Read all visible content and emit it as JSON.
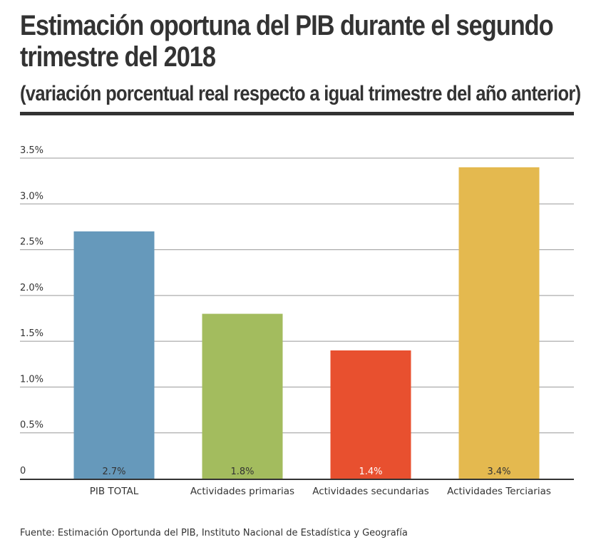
{
  "header": {
    "title": "Estimación oportuna del PIB durante el segundo trimestre del 2018",
    "subtitle": "(variación porcentual real respecto a igual trimestre del año anterior)"
  },
  "footer": {
    "source": "Fuente: Estimación Oportunda del PIB, Instituto Nacional de Estadística y Geografía"
  },
  "chart_data": {
    "type": "bar",
    "title": "Estimación oportuna del PIB durante el segundo trimestre del 2018",
    "subtitle": "(variación porcentual real respecto a igual trimestre del año anterior)",
    "categories": [
      "PIB TOTAL",
      "Actividades primarias",
      "Actividades secundarias",
      "Actividades Terciarias"
    ],
    "values": [
      2.7,
      1.8,
      1.4,
      3.4
    ],
    "value_labels": [
      "2.7%",
      "1.8%",
      "1.4%",
      "3.4%"
    ],
    "colors": [
      "#6699bb",
      "#a3bc5e",
      "#e8502f",
      "#e4b94f"
    ],
    "value_label_colors": [
      "#333333",
      "#333333",
      "#ffffff",
      "#333333"
    ],
    "ylim": [
      0,
      3.5
    ],
    "yticks": [
      0,
      0.5,
      1.0,
      1.5,
      2.0,
      2.5,
      3.0,
      3.5
    ],
    "ytick_labels": [
      "0",
      "0.5%",
      "1.0%",
      "1.5%",
      "2.0%",
      "2.5%",
      "3.0%",
      "3.5%"
    ],
    "xlabel": "",
    "ylabel": "",
    "grid": true,
    "legend": "none"
  }
}
